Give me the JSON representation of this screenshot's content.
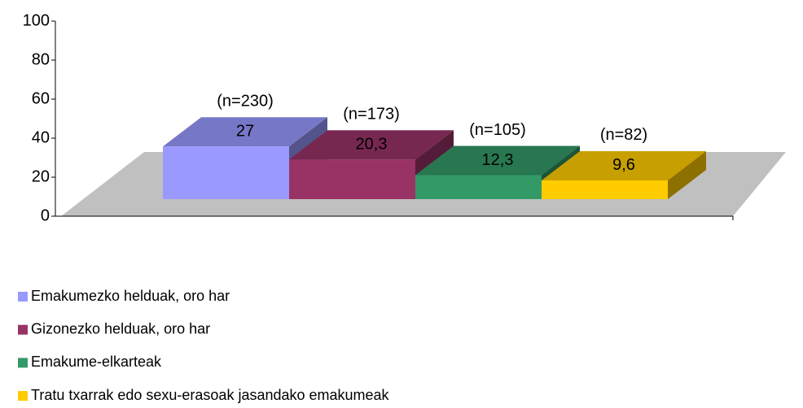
{
  "chart_data": {
    "type": "bar",
    "series": [
      {
        "name": "Emakumezko helduak, oro har",
        "color": "#9999ff",
        "values": [
          27
        ],
        "value_labels": [
          "27"
        ]
      },
      {
        "name": "Gizonezko helduak, oro har",
        "color": "#993366",
        "values": [
          20.3
        ],
        "value_labels": [
          "20,3"
        ]
      },
      {
        "name": "Emakume-elkarteak",
        "color": "#339966",
        "values": [
          12.3
        ],
        "value_labels": [
          "12,3"
        ]
      },
      {
        "name": "Tratu txarrak edo sexu-erasoak jasandako emakumeak",
        "color": "#ffcc00",
        "values": [
          9.6
        ],
        "value_labels": [
          "9,6"
        ]
      }
    ],
    "annotations": [
      "(n=230)",
      "(n=173)",
      "(n=105)",
      "(n=82)"
    ],
    "ylim": [
      0,
      100
    ],
    "yticks": [
      0,
      20,
      40,
      60,
      80,
      100
    ],
    "floor_color": "#c0c0c0"
  }
}
